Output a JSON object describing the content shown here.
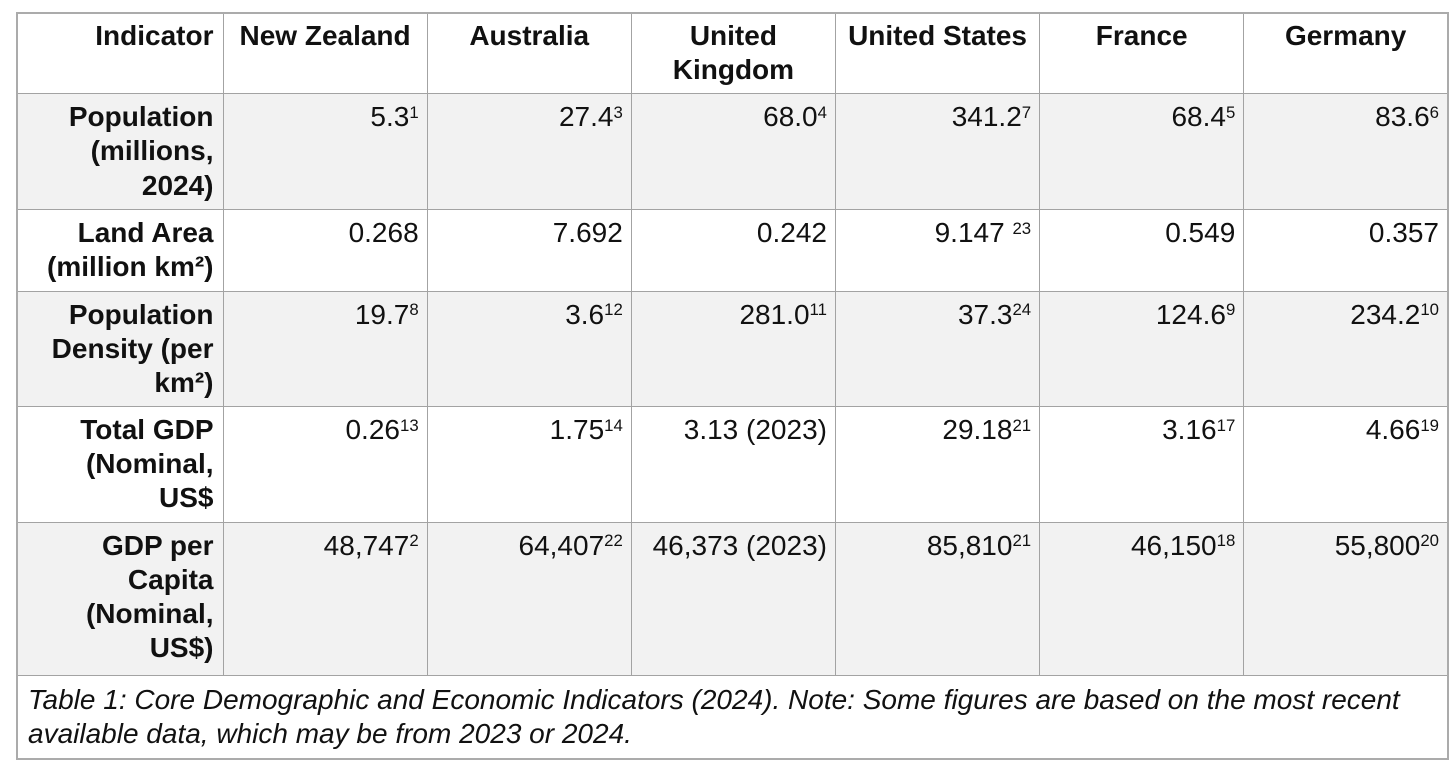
{
  "table": {
    "columns": [
      "Indicator",
      "New Zealand",
      "Australia",
      "United Kingdom",
      "United States",
      "France",
      "Germany"
    ],
    "rows": [
      {
        "label": "Population (millions, 2024)",
        "shaded": true,
        "values": [
          {
            "text": "5.3",
            "sup": "1"
          },
          {
            "text": "27.4",
            "sup": "3"
          },
          {
            "text": "68.0",
            "sup": "4"
          },
          {
            "text": "341.2",
            "sup": "7"
          },
          {
            "text": "68.4",
            "sup": "5"
          },
          {
            "text": "83.6",
            "sup": "6"
          }
        ]
      },
      {
        "label": "Land Area (million km²)",
        "shaded": false,
        "values": [
          {
            "text": "0.268",
            "sup": ""
          },
          {
            "text": "7.692",
            "sup": ""
          },
          {
            "text": "0.242",
            "sup": ""
          },
          {
            "text": "9.147 ",
            "sup": "23"
          },
          {
            "text": "0.549",
            "sup": ""
          },
          {
            "text": "0.357",
            "sup": ""
          }
        ]
      },
      {
        "label": "Population Density (per km²)",
        "shaded": true,
        "values": [
          {
            "text": "19.7",
            "sup": "8"
          },
          {
            "text": "3.6",
            "sup": "12"
          },
          {
            "text": "281.0",
            "sup": "11"
          },
          {
            "text": "37.3",
            "sup": "24"
          },
          {
            "text": "124.6",
            "sup": "9"
          },
          {
            "text": "234.2",
            "sup": "10"
          }
        ]
      },
      {
        "label": "Total GDP (Nominal, US$",
        "shaded": false,
        "values": [
          {
            "text": "0.26",
            "sup": "13"
          },
          {
            "text": "1.75",
            "sup": "14"
          },
          {
            "text": "3.13 (2023)",
            "sup": ""
          },
          {
            "text": "29.18",
            "sup": "21"
          },
          {
            "text": "3.16",
            "sup": "17"
          },
          {
            "text": "4.66",
            "sup": "19"
          }
        ]
      },
      {
        "label": "GDP per Capita (Nominal, US$)",
        "shaded": true,
        "values": [
          {
            "text": "48,747",
            "sup": "2"
          },
          {
            "text": "64,407",
            "sup": "22"
          },
          {
            "text": "46,373 (2023)",
            "sup": ""
          },
          {
            "text": "85,810",
            "sup": "21"
          },
          {
            "text": "46,150",
            "sup": "18"
          },
          {
            "text": "55,800",
            "sup": "20"
          }
        ]
      }
    ],
    "caption": "Table 1: Core Demographic and Economic Indicators (2024). Note: Some figures are based on the most recent available data, which may be from 2023 or 2024.",
    "colors": {
      "shaded_row_bg": "#f2f2f2",
      "border": "#a3a3a3",
      "border_outer": "#ababab",
      "text": "#111111"
    }
  }
}
